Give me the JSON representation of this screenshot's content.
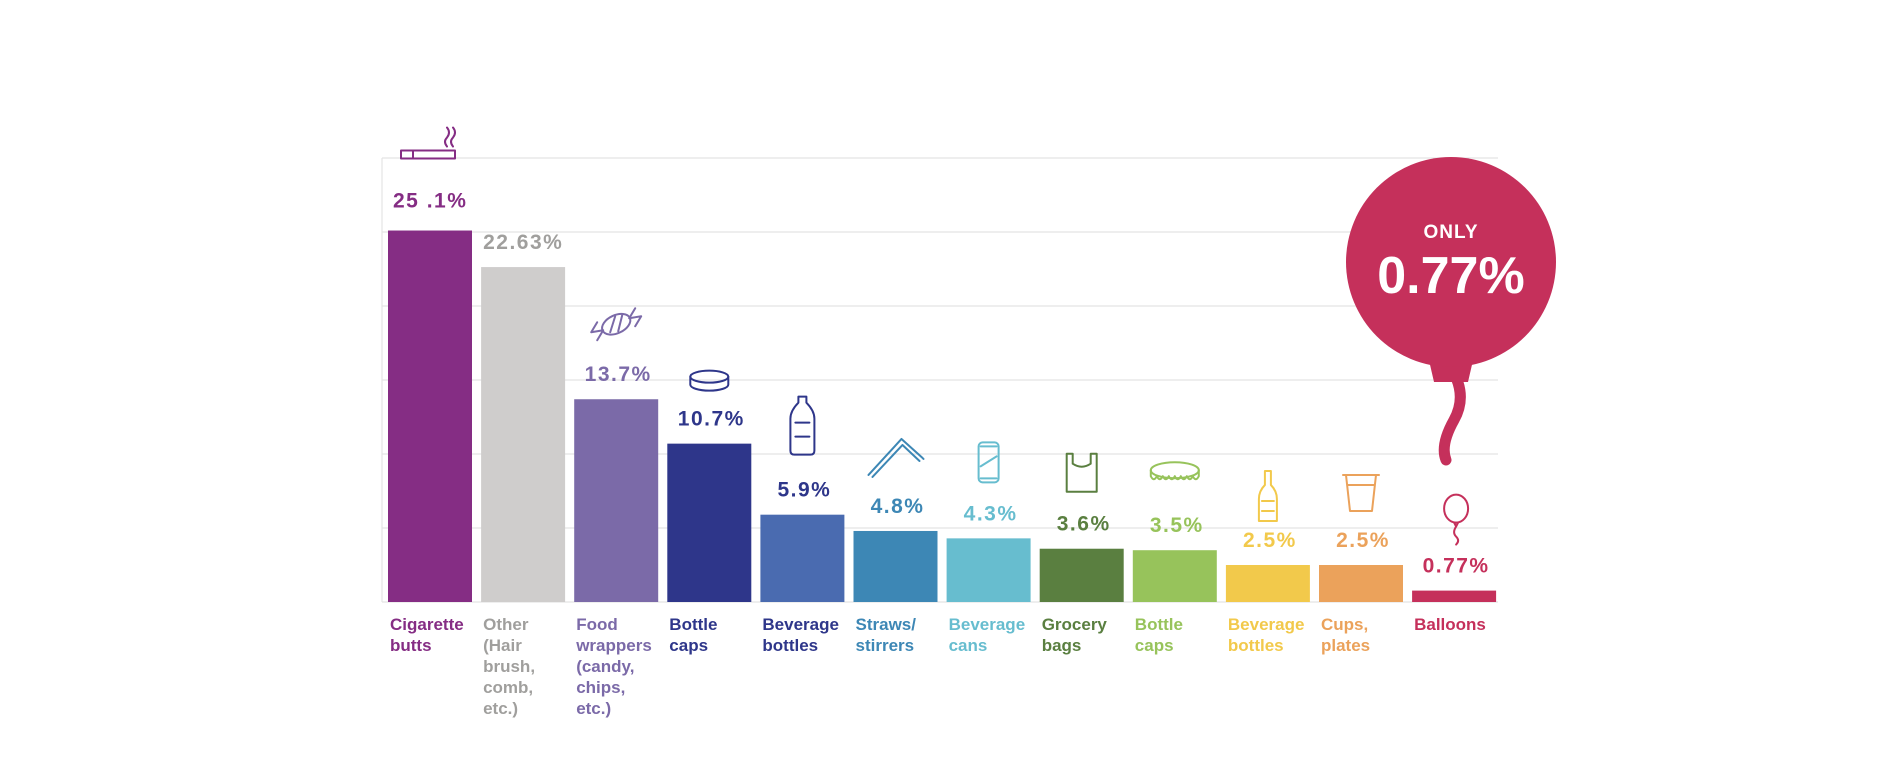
{
  "chart_data": {
    "type": "bar",
    "title": "",
    "xlabel": "",
    "ylabel": "",
    "ylim": [
      0,
      30
    ],
    "grid": true,
    "categories": [
      [
        "Cigarette",
        "butts"
      ],
      [
        "Other",
        "(Hair",
        "brush,",
        "comb,",
        "etc.)"
      ],
      [
        "Food",
        "wrappers",
        "(candy,",
        "chips,",
        "etc.)"
      ],
      [
        "Bottle",
        "caps"
      ],
      [
        "Beverage",
        "bottles"
      ],
      [
        "Straws/",
        "stirrers"
      ],
      [
        "Beverage",
        "cans"
      ],
      [
        "Grocery",
        "bags"
      ],
      [
        "Bottle",
        "caps"
      ],
      [
        "Beverage",
        "bottles"
      ],
      [
        "Cups,",
        "plates"
      ],
      [
        "Balloons"
      ]
    ],
    "values": [
      25.1,
      22.63,
      13.7,
      10.7,
      5.9,
      4.8,
      4.3,
      3.6,
      3.5,
      2.5,
      2.5,
      0.77
    ],
    "value_labels": [
      "25 .1%",
      "22.63%",
      "13.7%",
      "10.7%",
      "5.9%",
      "4.8%",
      "4.3%",
      "3.6%",
      "3.5%",
      "2.5%",
      "2.5%",
      "0.77%"
    ],
    "colors": [
      "#852d84",
      "#cfcdcc",
      "#7b6aa8",
      "#2e368a",
      "#4a6bb0",
      "#3d87b5",
      "#67bdcf",
      "#5a7f40",
      "#97c35b",
      "#f2c94b",
      "#eba25b",
      "#c5305b"
    ],
    "label_colors": [
      "#852d84",
      "#a09f9d",
      "#7b6aa8",
      "#2e368a",
      "#2e368a",
      "#3d87b5",
      "#67bdcf",
      "#5a7f40",
      "#97c35b",
      "#f2c94b",
      "#eba25b",
      "#c5305b"
    ],
    "icons": [
      "cigarette-icon",
      "",
      "candy-icon",
      "bottle-cap-icon",
      "water-bottle-icon",
      "straw-icon",
      "can-icon",
      "grocery-bag-icon",
      "crown-cap-icon",
      "glass-bottle-icon",
      "cup-icon",
      "balloon-icon"
    ]
  },
  "callout": {
    "only_label": "ONLY",
    "value": "0.77%",
    "color": "#c5305b"
  }
}
